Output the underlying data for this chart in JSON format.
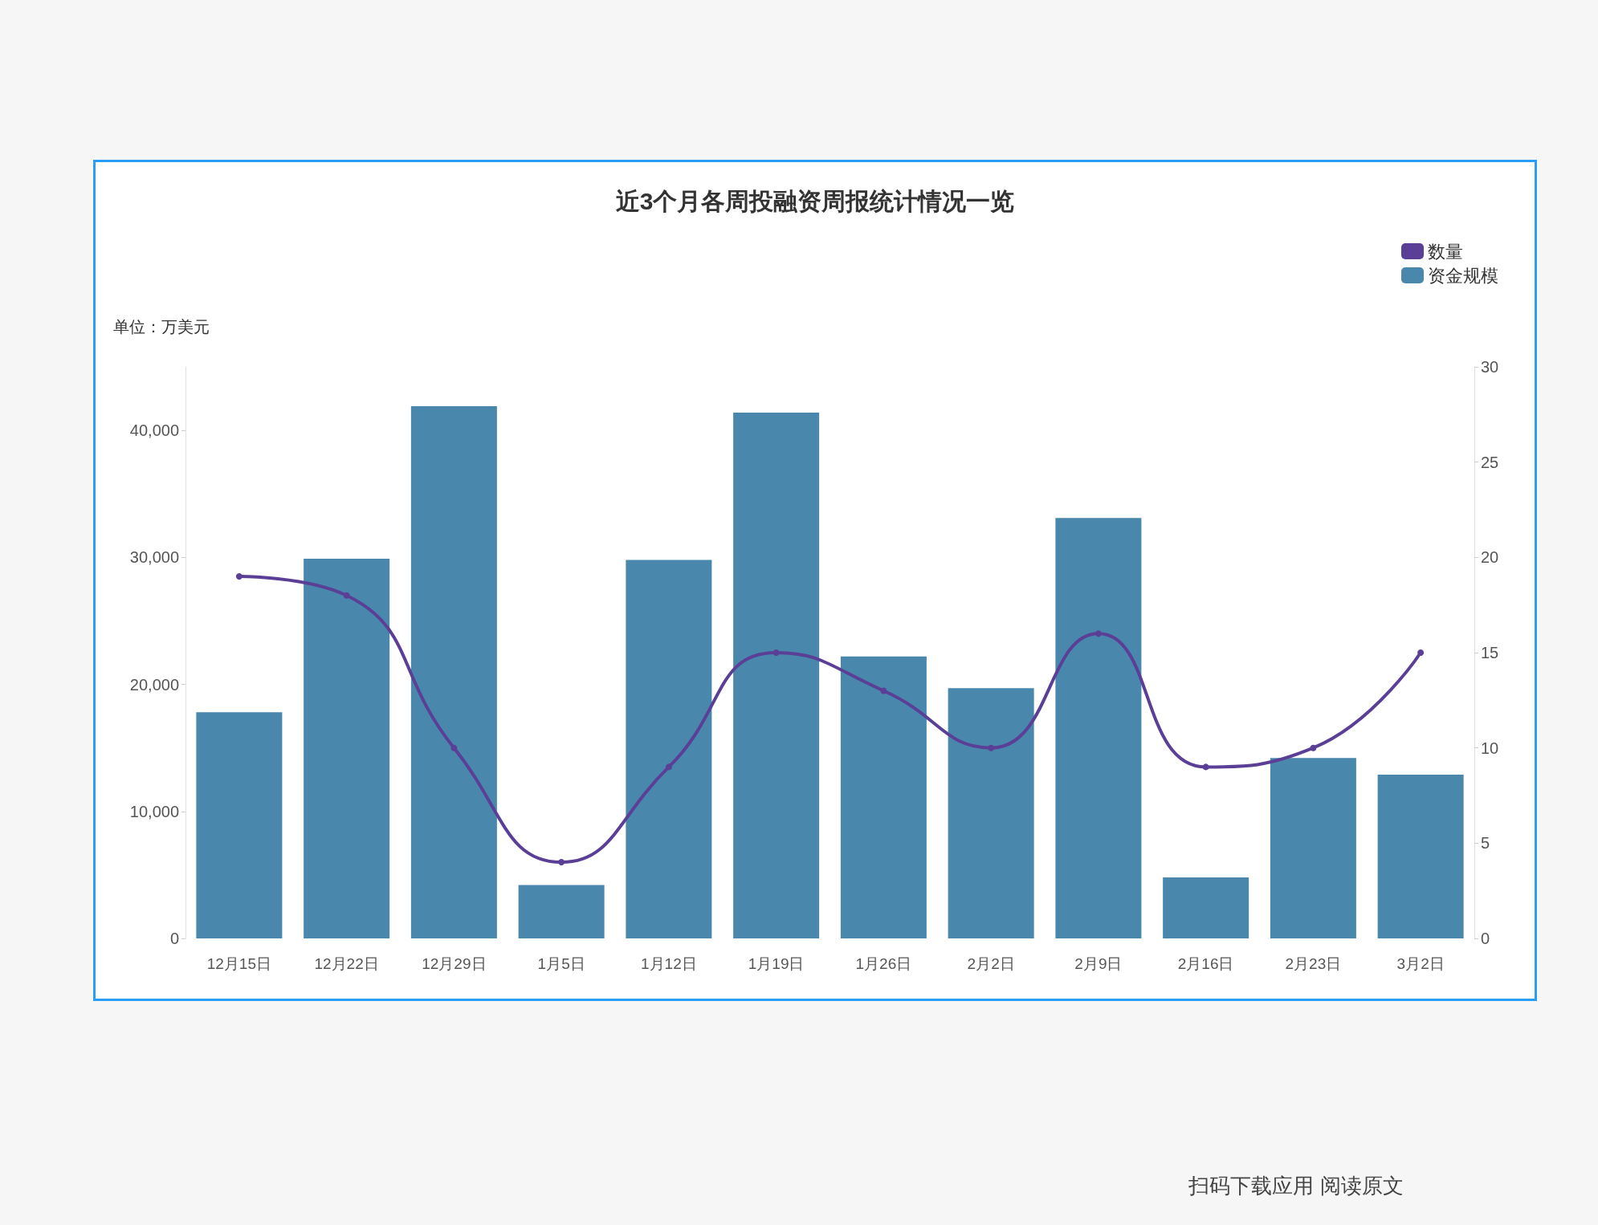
{
  "chart_data": {
    "type": "bar",
    "title": "近3个月各周投融资周报统计情况一览",
    "ylabel": "单位：万美元",
    "categories": [
      "12月15日",
      "12月22日",
      "12月29日",
      "1月5日",
      "1月12日",
      "1月19日",
      "1月26日",
      "2月2日",
      "2月9日",
      "2月16日",
      "2月23日",
      "3月2日"
    ],
    "series": [
      {
        "name": "资金规模",
        "color": "#4a87ad",
        "values": [
          17800,
          29900,
          41900,
          4200,
          29800,
          41400,
          22200,
          19700,
          33100,
          4800,
          14200,
          12900
        ]
      },
      {
        "name": "数量",
        "type": "line",
        "axis": "y2",
        "color": "#5b3f96",
        "values": [
          19,
          18,
          10,
          4,
          9,
          15,
          13,
          10,
          16,
          9,
          10,
          15
        ]
      }
    ],
    "ylim": [
      0,
      45000
    ],
    "yticks": [
      0,
      {
        "value": 10000,
        "label": "10,000"
      },
      {
        "value": 20000,
        "label": "20,000"
      },
      {
        "value": 30000,
        "label": "30,000"
      },
      {
        "value": 40000,
        "label": "40,000"
      }
    ],
    "y2lim": [
      0,
      30
    ],
    "y2ticks": [
      0,
      5,
      10,
      15,
      20,
      25,
      30
    ],
    "grid": false,
    "legend": "top right",
    "marker": "circle",
    "line_style": "solid",
    "annotations": [
      "扫码下载应用 阅读原文"
    ]
  }
}
